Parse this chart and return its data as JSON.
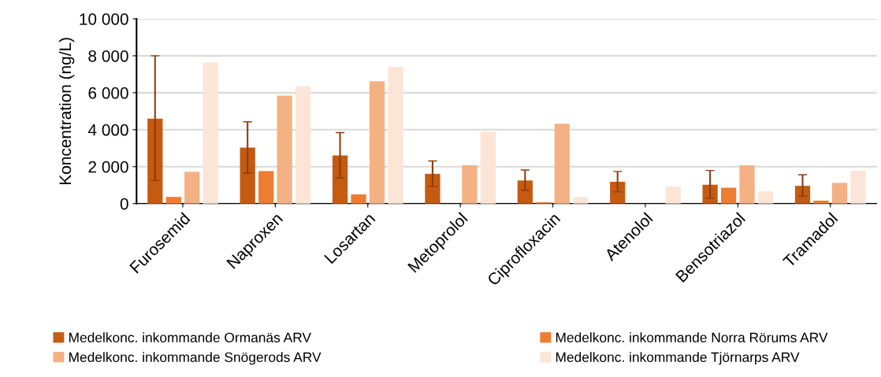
{
  "chart_data": {
    "type": "bar",
    "ylabel": "Koncentration (ng/L)",
    "categories": [
      "Furosemid",
      "Naproxen",
      "Losartan",
      "Metoprolol",
      "Ciprofloxacin",
      "Atenolol",
      "Bensotriazol",
      "Tramadol"
    ],
    "series": [
      {
        "name": "Medelkonc. inkommande Ormanäs ARV",
        "color": "#c55a11",
        "values": [
          4600,
          3030,
          2610,
          1610,
          1250,
          1180,
          1020,
          960
        ],
        "errors": [
          [
            1250,
            8000
          ],
          [
            1650,
            4430
          ],
          [
            1390,
            3840
          ],
          [
            930,
            2310
          ],
          [
            720,
            1820
          ],
          [
            630,
            1740
          ],
          [
            290,
            1790
          ],
          [
            400,
            1560
          ]
        ]
      },
      {
        "name": "Medelkonc. inkommande Norra Rörums ARV",
        "color": "#ed7d31",
        "values": [
          360,
          1760,
          500,
          null,
          70,
          null,
          860,
          160
        ]
      },
      {
        "name": "Medelkonc. inkommande Snögerods ARV",
        "color": "#f4b183",
        "values": [
          1720,
          5840,
          6620,
          2080,
          4320,
          null,
          2070,
          1120
        ]
      },
      {
        "name": "Medelkonc. inkommande Tjörnarps ARV",
        "color": "#fbe5d6",
        "values": [
          7630,
          6340,
          7400,
          3890,
          360,
          930,
          670,
          1780
        ]
      }
    ],
    "ylim": [
      0,
      10000
    ],
    "yticks": [
      {
        "value": 0,
        "label": "0"
      },
      {
        "value": 2000,
        "label": "2 000"
      },
      {
        "value": 4000,
        "label": "4 000"
      },
      {
        "value": 6000,
        "label": "6 000"
      },
      {
        "value": 8000,
        "label": "8 000"
      },
      {
        "value": 10000,
        "label": "10 000"
      }
    ],
    "grid": "y",
    "legend": "bottom"
  }
}
